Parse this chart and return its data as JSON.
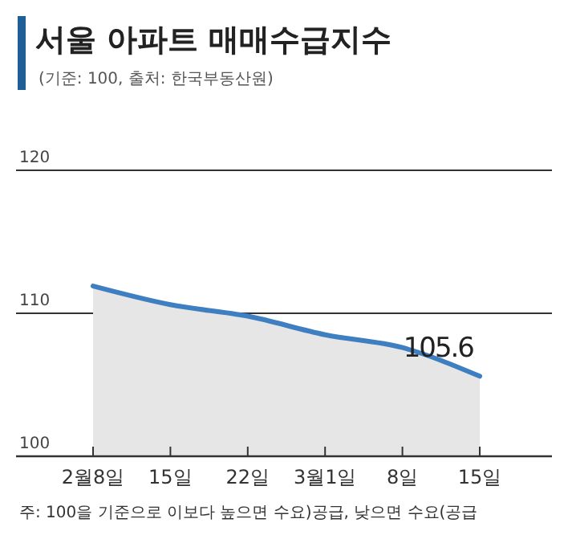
{
  "chart_data": {
    "type": "area",
    "title": "서울 아파트 매매수급지수",
    "subtitle": "(기준: 100, 출처: 한국부동산원)",
    "categories": [
      "2월8일",
      "15일",
      "22일",
      "3월1일",
      "8일",
      "15일"
    ],
    "series": [
      {
        "color": "#3d7fc0",
        "values": [
          111.9,
          110.6,
          109.8,
          108.5,
          107.6,
          105.6
        ],
        "value_labels": [
          null,
          null,
          null,
          null,
          null,
          "105.6"
        ]
      }
    ],
    "ylim": [
      100,
      120
    ],
    "yticks": [
      100,
      110,
      120
    ],
    "grid": "y",
    "annotations": [
      "주: 100을 기준으로 이보다 높으면 수요)공급, 낮으면 수요(공급"
    ]
  }
}
